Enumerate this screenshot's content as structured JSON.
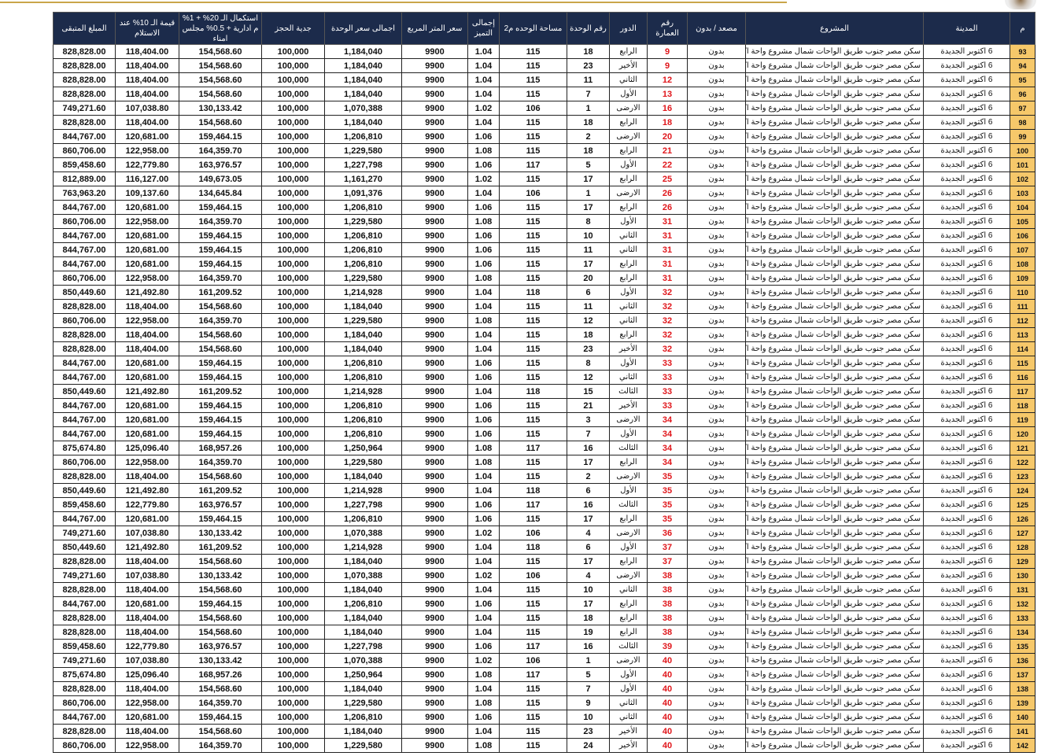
{
  "colors": {
    "header_bg": "#1c2b4b",
    "index_bg": "#f6c86a",
    "building_text": "#e0161b",
    "accent_line": "#c9a54a"
  },
  "logo": "logo-seal",
  "headers": [
    "م",
    "المدينة",
    "المشروع",
    "مصعد / بدون",
    "رقم العمارة",
    "الدور",
    "رقم الوحدة",
    "مساحة الوحده  م2",
    "إجمالى التميز",
    "سعر المتر المربع",
    "اجمالى سعر الوحدة",
    "جدية الحجز",
    "استكمال الـ 20% + 1% م ادارية + 0.5% مجلس امناء",
    "قيمة الـ 10% عند الاستلام",
    "المبلغ المتبقى"
  ],
  "common": {
    "city": "6 اكتوبر الجديدة",
    "project": "سكن مصر جنوب طريق الواحات شمال مشروع واحة اكتوبر",
    "elevator": "بدون",
    "price_per_m": "9900",
    "booking": "100,000"
  },
  "rows": [
    [
      "93",
      "9",
      "الرابع",
      "18",
      "115",
      "1.04",
      "1,184,040",
      "154,568.60",
      "118,404.00",
      "828,828.00"
    ],
    [
      "94",
      "9",
      "الأخير",
      "23",
      "115",
      "1.04",
      "1,184,040",
      "154,568.60",
      "118,404.00",
      "828,828.00"
    ],
    [
      "95",
      "12",
      "الثاني",
      "11",
      "115",
      "1.04",
      "1,184,040",
      "154,568.60",
      "118,404.00",
      "828,828.00"
    ],
    [
      "96",
      "13",
      "الأول",
      "7",
      "115",
      "1.04",
      "1,184,040",
      "154,568.60",
      "118,404.00",
      "828,828.00"
    ],
    [
      "97",
      "16",
      "الارضى",
      "1",
      "106",
      "1.02",
      "1,070,388",
      "130,133.42",
      "107,038.80",
      "749,271.60"
    ],
    [
      "98",
      "18",
      "الرابع",
      "18",
      "115",
      "1.04",
      "1,184,040",
      "154,568.60",
      "118,404.00",
      "828,828.00"
    ],
    [
      "99",
      "20",
      "الارضى",
      "2",
      "115",
      "1.06",
      "1,206,810",
      "159,464.15",
      "120,681.00",
      "844,767.00"
    ],
    [
      "100",
      "21",
      "الرابع",
      "18",
      "115",
      "1.08",
      "1,229,580",
      "164,359.70",
      "122,958.00",
      "860,706.00"
    ],
    [
      "101",
      "22",
      "الأول",
      "5",
      "117",
      "1.06",
      "1,227,798",
      "163,976.57",
      "122,779.80",
      "859,458.60"
    ],
    [
      "102",
      "25",
      "الرابع",
      "17",
      "115",
      "1.02",
      "1,161,270",
      "149,673.05",
      "116,127.00",
      "812,889.00"
    ],
    [
      "103",
      "26",
      "الارضى",
      "1",
      "106",
      "1.04",
      "1,091,376",
      "134,645.84",
      "109,137.60",
      "763,963.20"
    ],
    [
      "104",
      "26",
      "الرابع",
      "17",
      "115",
      "1.06",
      "1,206,810",
      "159,464.15",
      "120,681.00",
      "844,767.00"
    ],
    [
      "105",
      "31",
      "الأول",
      "8",
      "115",
      "1.08",
      "1,229,580",
      "164,359.70",
      "122,958.00",
      "860,706.00"
    ],
    [
      "106",
      "31",
      "الثاني",
      "10",
      "115",
      "1.06",
      "1,206,810",
      "159,464.15",
      "120,681.00",
      "844,767.00"
    ],
    [
      "107",
      "31",
      "الثاني",
      "11",
      "115",
      "1.06",
      "1,206,810",
      "159,464.15",
      "120,681.00",
      "844,767.00"
    ],
    [
      "108",
      "31",
      "الرابع",
      "17",
      "115",
      "1.06",
      "1,206,810",
      "159,464.15",
      "120,681.00",
      "844,767.00"
    ],
    [
      "109",
      "31",
      "الرابع",
      "20",
      "115",
      "1.08",
      "1,229,580",
      "164,359.70",
      "122,958.00",
      "860,706.00"
    ],
    [
      "110",
      "32",
      "الأول",
      "6",
      "118",
      "1.04",
      "1,214,928",
      "161,209.52",
      "121,492.80",
      "850,449.60"
    ],
    [
      "111",
      "32",
      "الثاني",
      "11",
      "115",
      "1.04",
      "1,184,040",
      "154,568.60",
      "118,404.00",
      "828,828.00"
    ],
    [
      "112",
      "32",
      "الثاني",
      "12",
      "115",
      "1.08",
      "1,229,580",
      "164,359.70",
      "122,958.00",
      "860,706.00"
    ],
    [
      "113",
      "32",
      "الرابع",
      "18",
      "115",
      "1.04",
      "1,184,040",
      "154,568.60",
      "118,404.00",
      "828,828.00"
    ],
    [
      "114",
      "32",
      "الأخير",
      "23",
      "115",
      "1.04",
      "1,184,040",
      "154,568.60",
      "118,404.00",
      "828,828.00"
    ],
    [
      "115",
      "33",
      "الأول",
      "8",
      "115",
      "1.06",
      "1,206,810",
      "159,464.15",
      "120,681.00",
      "844,767.00"
    ],
    [
      "116",
      "33",
      "الثاني",
      "12",
      "115",
      "1.06",
      "1,206,810",
      "159,464.15",
      "120,681.00",
      "844,767.00"
    ],
    [
      "117",
      "33",
      "الثالث",
      "15",
      "118",
      "1.04",
      "1,214,928",
      "161,209.52",
      "121,492.80",
      "850,449.60"
    ],
    [
      "118",
      "33",
      "الأخير",
      "21",
      "115",
      "1.06",
      "1,206,810",
      "159,464.15",
      "120,681.00",
      "844,767.00"
    ],
    [
      "119",
      "34",
      "الارضى",
      "3",
      "115",
      "1.06",
      "1,206,810",
      "159,464.15",
      "120,681.00",
      "844,767.00"
    ],
    [
      "120",
      "34",
      "الأول",
      "7",
      "115",
      "1.06",
      "1,206,810",
      "159,464.15",
      "120,681.00",
      "844,767.00"
    ],
    [
      "121",
      "34",
      "الثالث",
      "16",
      "117",
      "1.08",
      "1,250,964",
      "168,957.26",
      "125,096.40",
      "875,674.80"
    ],
    [
      "122",
      "34",
      "الرابع",
      "17",
      "115",
      "1.08",
      "1,229,580",
      "164,359.70",
      "122,958.00",
      "860,706.00"
    ],
    [
      "123",
      "35",
      "الارضى",
      "2",
      "115",
      "1.04",
      "1,184,040",
      "154,568.60",
      "118,404.00",
      "828,828.00"
    ],
    [
      "124",
      "35",
      "الأول",
      "6",
      "118",
      "1.04",
      "1,214,928",
      "161,209.52",
      "121,492.80",
      "850,449.60"
    ],
    [
      "125",
      "35",
      "الثالث",
      "16",
      "117",
      "1.06",
      "1,227,798",
      "163,976.57",
      "122,779.80",
      "859,458.60"
    ],
    [
      "126",
      "35",
      "الرابع",
      "17",
      "115",
      "1.06",
      "1,206,810",
      "159,464.15",
      "120,681.00",
      "844,767.00"
    ],
    [
      "127",
      "36",
      "الارضى",
      "4",
      "106",
      "1.02",
      "1,070,388",
      "130,133.42",
      "107,038.80",
      "749,271.60"
    ],
    [
      "128",
      "37",
      "الأول",
      "6",
      "118",
      "1.04",
      "1,214,928",
      "161,209.52",
      "121,492.80",
      "850,449.60"
    ],
    [
      "129",
      "37",
      "الرابع",
      "17",
      "115",
      "1.04",
      "1,184,040",
      "154,568.60",
      "118,404.00",
      "828,828.00"
    ],
    [
      "130",
      "38",
      "الارضى",
      "4",
      "106",
      "1.02",
      "1,070,388",
      "130,133.42",
      "107,038.80",
      "749,271.60"
    ],
    [
      "131",
      "38",
      "الثاني",
      "10",
      "115",
      "1.04",
      "1,184,040",
      "154,568.60",
      "118,404.00",
      "828,828.00"
    ],
    [
      "132",
      "38",
      "الرابع",
      "17",
      "115",
      "1.06",
      "1,206,810",
      "159,464.15",
      "120,681.00",
      "844,767.00"
    ],
    [
      "133",
      "38",
      "الرابع",
      "18",
      "115",
      "1.04",
      "1,184,040",
      "154,568.60",
      "118,404.00",
      "828,828.00"
    ],
    [
      "134",
      "38",
      "الرابع",
      "19",
      "115",
      "1.04",
      "1,184,040",
      "154,568.60",
      "118,404.00",
      "828,828.00"
    ],
    [
      "135",
      "39",
      "الثالث",
      "16",
      "117",
      "1.06",
      "1,227,798",
      "163,976.57",
      "122,779.80",
      "859,458.60"
    ],
    [
      "136",
      "40",
      "الارضى",
      "1",
      "106",
      "1.02",
      "1,070,388",
      "130,133.42",
      "107,038.80",
      "749,271.60"
    ],
    [
      "137",
      "40",
      "الأول",
      "5",
      "117",
      "1.08",
      "1,250,964",
      "168,957.26",
      "125,096.40",
      "875,674.80"
    ],
    [
      "138",
      "40",
      "الأول",
      "7",
      "115",
      "1.04",
      "1,184,040",
      "154,568.60",
      "118,404.00",
      "828,828.00"
    ],
    [
      "139",
      "40",
      "الثاني",
      "9",
      "115",
      "1.08",
      "1,229,580",
      "164,359.70",
      "122,958.00",
      "860,706.00"
    ],
    [
      "140",
      "40",
      "الثاني",
      "10",
      "115",
      "1.06",
      "1,206,810",
      "159,464.15",
      "120,681.00",
      "844,767.00"
    ],
    [
      "141",
      "40",
      "الأخير",
      "23",
      "115",
      "1.04",
      "1,184,040",
      "154,568.60",
      "118,404.00",
      "828,828.00"
    ],
    [
      "142",
      "40",
      "الأخير",
      "24",
      "115",
      "1.08",
      "1,229,580",
      "164,359.70",
      "122,958.00",
      "860,706.00"
    ]
  ]
}
